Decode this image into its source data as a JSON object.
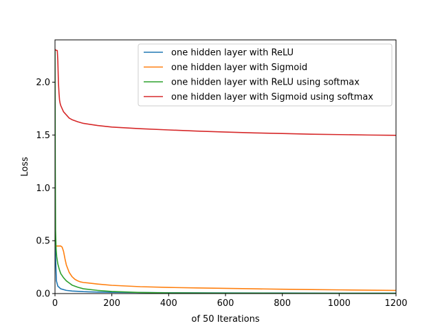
{
  "chart_data": {
    "type": "line",
    "xlabel": "of 50 Iterations",
    "ylabel": "Loss",
    "xlim": [
      0,
      1200
    ],
    "ylim": [
      0,
      2.4
    ],
    "xticks": [
      0,
      200,
      400,
      600,
      800,
      1000,
      1200
    ],
    "yticks": [
      0.0,
      0.5,
      1.0,
      1.5,
      2.0
    ],
    "ytick_labels": [
      "0.0",
      "0.5",
      "1.0",
      "1.5",
      "2.0"
    ],
    "grid": false,
    "legend_position": "top-right",
    "series": [
      {
        "name": "one hidden layer with ReLU",
        "color": "#1f77b4",
        "x": [
          0,
          2,
          5,
          10,
          20,
          40,
          60,
          100,
          150,
          200,
          300,
          400,
          600,
          800,
          1000,
          1200
        ],
        "y": [
          1.05,
          0.35,
          0.12,
          0.07,
          0.045,
          0.03,
          0.024,
          0.018,
          0.014,
          0.012,
          0.01,
          0.008,
          0.006,
          0.005,
          0.004,
          0.004
        ]
      },
      {
        "name": "one hidden layer with Sigmoid",
        "color": "#ff7f0e",
        "x": [
          0,
          2,
          5,
          10,
          15,
          20,
          25,
          30,
          35,
          40,
          50,
          60,
          70,
          80,
          90,
          100,
          150,
          200,
          300,
          400,
          500,
          600,
          700,
          800,
          900,
          1000,
          1100,
          1200
        ],
        "y": [
          0.45,
          0.45,
          0.45,
          0.45,
          0.45,
          0.45,
          0.44,
          0.4,
          0.33,
          0.27,
          0.2,
          0.16,
          0.135,
          0.12,
          0.11,
          0.105,
          0.09,
          0.078,
          0.065,
          0.058,
          0.053,
          0.049,
          0.045,
          0.041,
          0.038,
          0.035,
          0.032,
          0.03
        ]
      },
      {
        "name": "one hidden layer with ReLU using softmax",
        "color": "#2ca02c",
        "x": [
          0,
          1,
          2,
          4,
          6,
          10,
          15,
          20,
          30,
          40,
          50,
          60,
          80,
          100,
          150,
          200,
          300,
          400,
          600,
          800,
          1000,
          1200
        ],
        "y": [
          2.31,
          1.2,
          0.6,
          0.42,
          0.35,
          0.28,
          0.23,
          0.19,
          0.15,
          0.12,
          0.1,
          0.08,
          0.06,
          0.045,
          0.03,
          0.02,
          0.01,
          0.006,
          0.004,
          0.003,
          0.002,
          0.002
        ]
      },
      {
        "name": "one hidden layer with Sigmoid using softmax",
        "color": "#d62728",
        "x": [
          0,
          5,
          8,
          10,
          12,
          14,
          16,
          18,
          20,
          25,
          30,
          40,
          50,
          60,
          80,
          100,
          150,
          200,
          300,
          400,
          500,
          600,
          700,
          800,
          900,
          1000,
          1100,
          1200
        ],
        "y": [
          2.31,
          2.3,
          2.3,
          2.2,
          2.0,
          1.9,
          1.83,
          1.8,
          1.78,
          1.75,
          1.72,
          1.69,
          1.66,
          1.645,
          1.625,
          1.61,
          1.59,
          1.575,
          1.56,
          1.548,
          1.537,
          1.528,
          1.52,
          1.514,
          1.508,
          1.504,
          1.5,
          1.497
        ]
      }
    ]
  }
}
